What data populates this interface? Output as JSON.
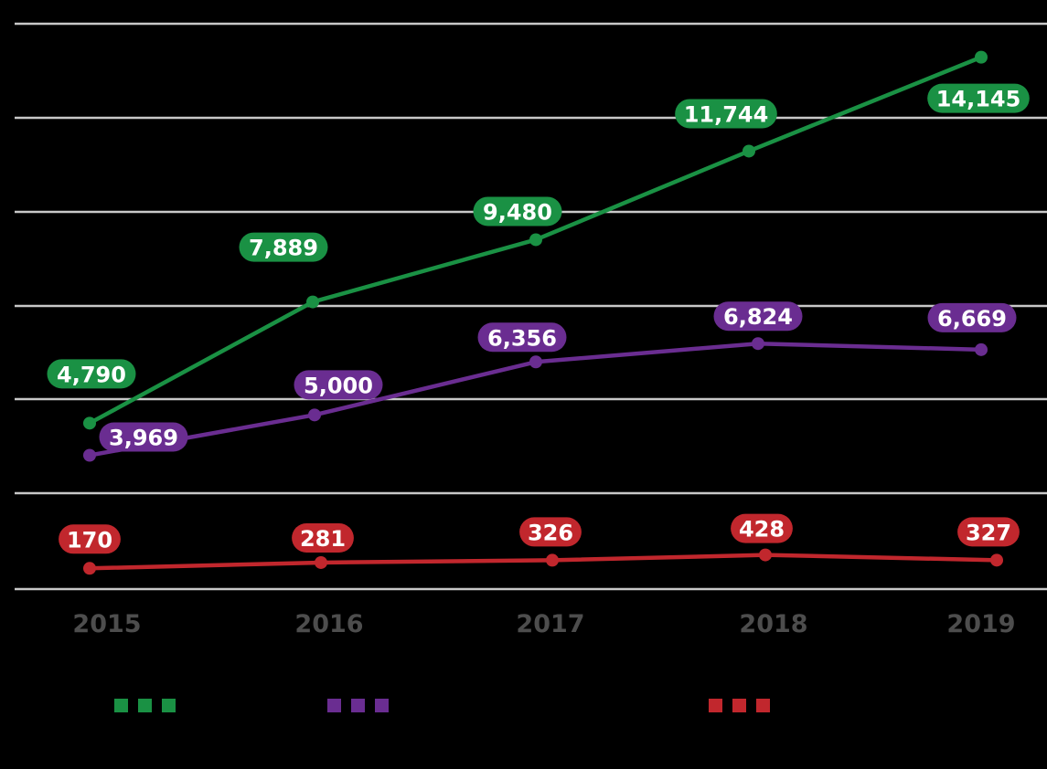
{
  "chart_data": {
    "type": "line",
    "title": "",
    "xlabel": "",
    "ylabel": "",
    "x": [
      "2015",
      "2016",
      "2017",
      "2018",
      "2019"
    ],
    "ylim": [
      0,
      15000
    ],
    "grid": true,
    "legend": "bottom",
    "series": [
      {
        "color": "#1a9144",
        "values": [
          4790,
          7889,
          9480,
          11744,
          14145
        ],
        "labels": [
          "4,790",
          "7,889",
          "9,480",
          "11,744",
          "14,145"
        ]
      },
      {
        "color": "#6a2d91",
        "values": [
          3969,
          5000,
          6356,
          6824,
          6669
        ],
        "labels": [
          "3,969",
          "5,000",
          "6,356",
          "6,824",
          "6,669"
        ]
      },
      {
        "color": "#c1272d",
        "values": [
          170,
          281,
          326,
          428,
          327
        ],
        "labels": [
          "170",
          "281",
          "326",
          "428",
          "327"
        ]
      }
    ]
  }
}
